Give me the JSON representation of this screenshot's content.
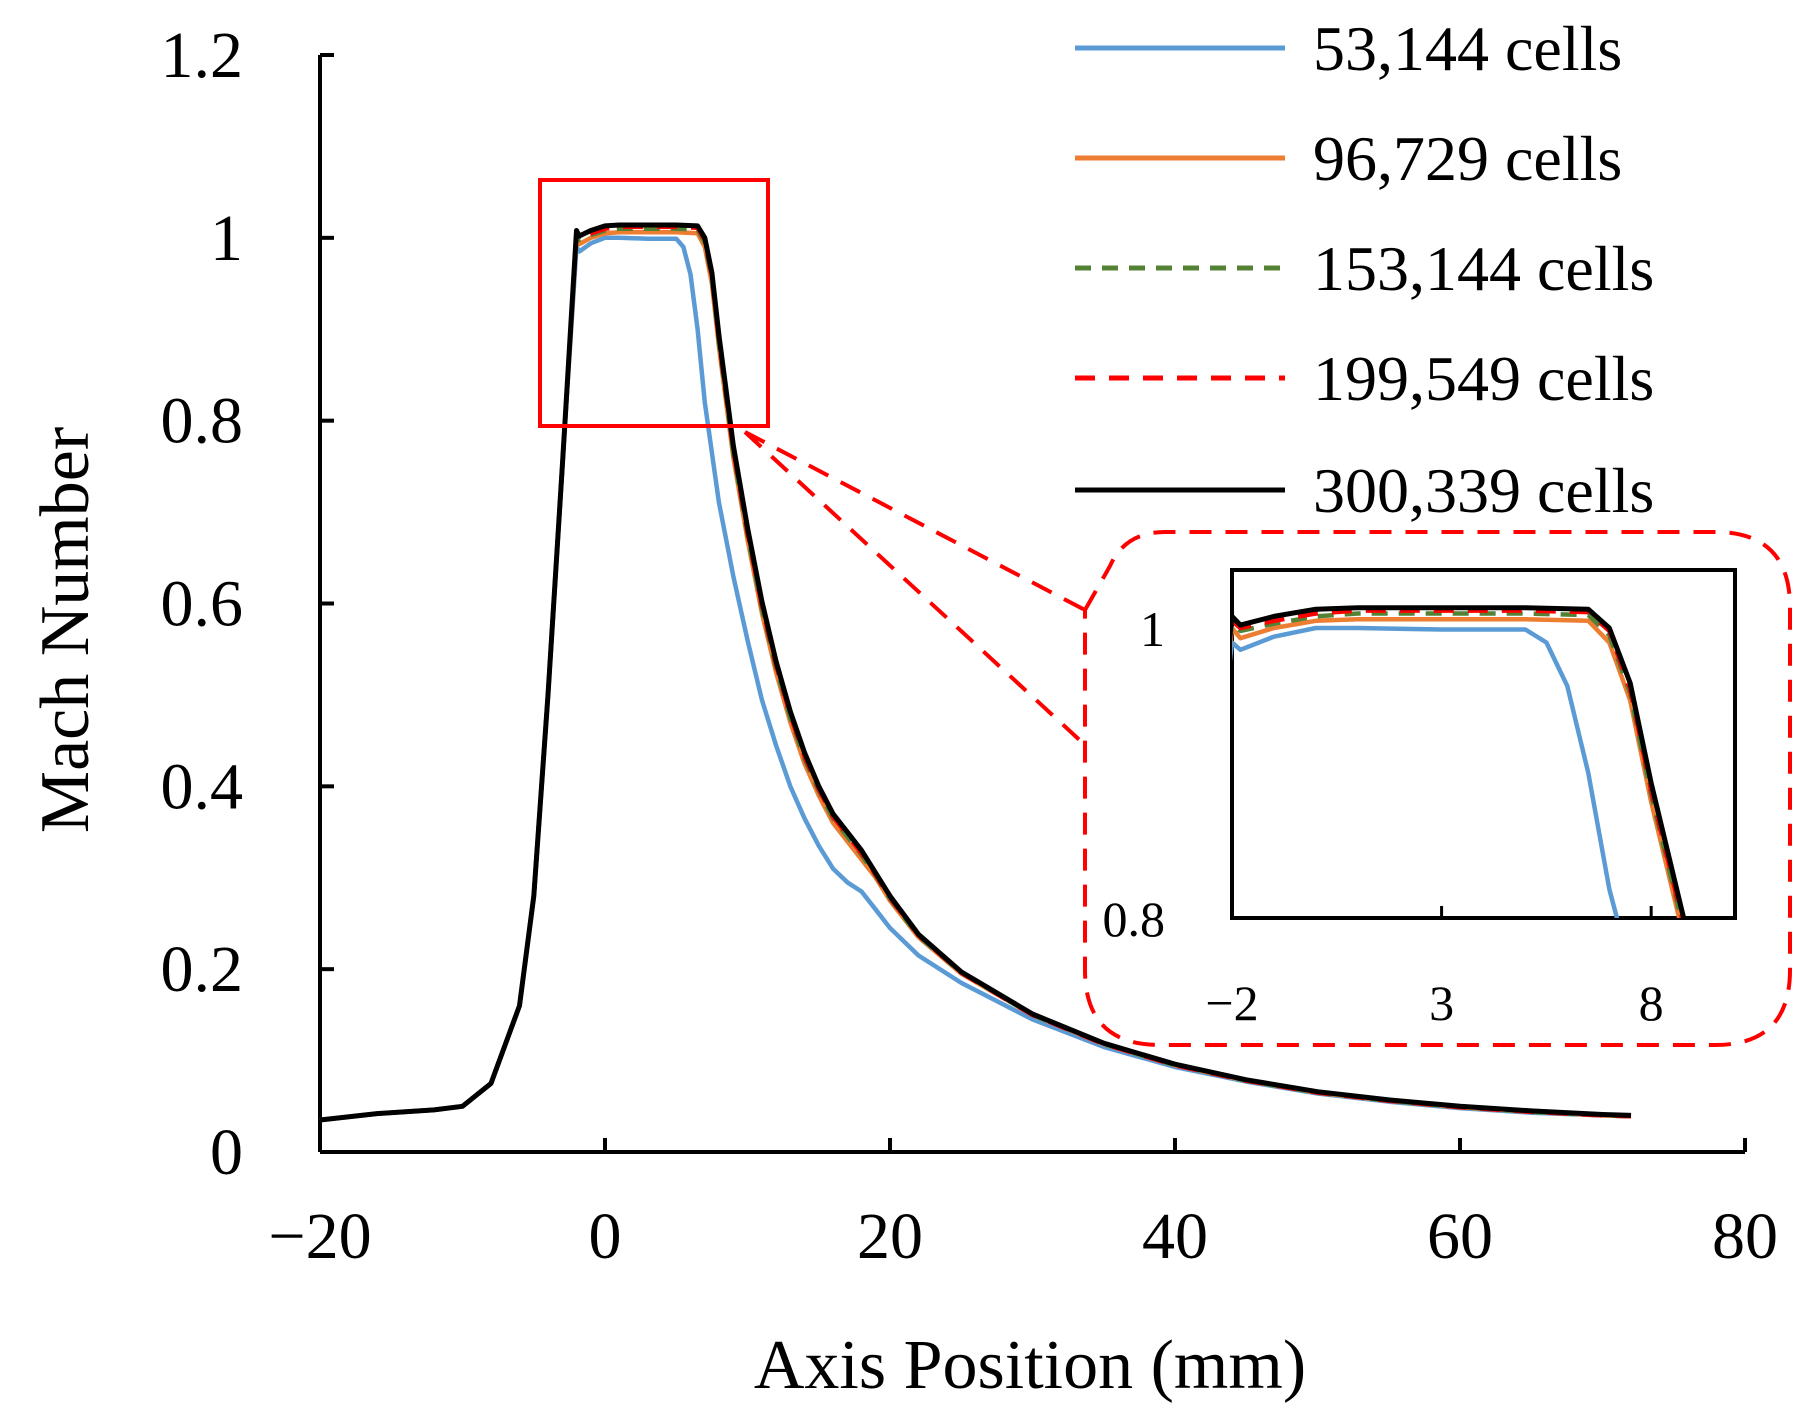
{
  "chart_data": {
    "type": "line",
    "title": "",
    "xlabel": "Axis Position (mm)",
    "ylabel": "Mach Number",
    "xlim": [
      -20,
      80
    ],
    "ylim": [
      0,
      1.2
    ],
    "x_ticks": [
      "−20",
      "0",
      "20",
      "40",
      "60",
      "80"
    ],
    "y_ticks": [
      "0",
      "0.2",
      "0.4",
      "0.6",
      "0.8",
      "1",
      "1.2"
    ],
    "grid": false,
    "legend_position": "top-right",
    "series": [
      {
        "name": "53,144 cells",
        "color": "#5b9bd5",
        "style": "solid",
        "points": [
          [
            -20,
            0.035
          ],
          [
            -16,
            0.042
          ],
          [
            -12,
            0.046
          ],
          [
            -10,
            0.05
          ],
          [
            -8,
            0.075
          ],
          [
            -6,
            0.16
          ],
          [
            -5,
            0.28
          ],
          [
            -4,
            0.5
          ],
          [
            -3,
            0.75
          ],
          [
            -2,
            0.99
          ],
          [
            -1.8,
            0.985
          ],
          [
            -1,
            0.994
          ],
          [
            0,
            1.0
          ],
          [
            1,
            1.0
          ],
          [
            3,
            0.999
          ],
          [
            5,
            0.999
          ],
          [
            5.5,
            0.99
          ],
          [
            6,
            0.96
          ],
          [
            6.5,
            0.9
          ],
          [
            7,
            0.82
          ],
          [
            8,
            0.71
          ],
          [
            9,
            0.63
          ],
          [
            10,
            0.56
          ],
          [
            11,
            0.495
          ],
          [
            12,
            0.445
          ],
          [
            13,
            0.4
          ],
          [
            14,
            0.365
          ],
          [
            15,
            0.335
          ],
          [
            16,
            0.31
          ],
          [
            17,
            0.295
          ],
          [
            18,
            0.285
          ],
          [
            19,
            0.265
          ],
          [
            20,
            0.245
          ],
          [
            22,
            0.215
          ],
          [
            25,
            0.185
          ],
          [
            30,
            0.145
          ],
          [
            35,
            0.115
          ],
          [
            40,
            0.093
          ],
          [
            45,
            0.077
          ],
          [
            50,
            0.064
          ],
          [
            55,
            0.055
          ],
          [
            60,
            0.048
          ],
          [
            65,
            0.043
          ],
          [
            70,
            0.04
          ],
          [
            72,
            0.039
          ]
        ]
      },
      {
        "name": "96,729 cells",
        "color": "#ed7d31",
        "style": "solid",
        "points": [
          [
            -20,
            0.035
          ],
          [
            -16,
            0.042
          ],
          [
            -12,
            0.046
          ],
          [
            -10,
            0.05
          ],
          [
            -8,
            0.075
          ],
          [
            -6,
            0.16
          ],
          [
            -5,
            0.28
          ],
          [
            -4,
            0.5
          ],
          [
            -3,
            0.75
          ],
          [
            -2,
            1.0
          ],
          [
            -1.8,
            0.993
          ],
          [
            -1,
            1.0
          ],
          [
            0,
            1.005
          ],
          [
            1,
            1.006
          ],
          [
            3,
            1.006
          ],
          [
            5,
            1.006
          ],
          [
            6.5,
            1.005
          ],
          [
            7,
            0.99
          ],
          [
            7.5,
            0.95
          ],
          [
            8,
            0.88
          ],
          [
            9,
            0.76
          ],
          [
            10,
            0.67
          ],
          [
            11,
            0.59
          ],
          [
            12,
            0.525
          ],
          [
            13,
            0.47
          ],
          [
            14,
            0.425
          ],
          [
            15,
            0.39
          ],
          [
            16,
            0.36
          ],
          [
            17,
            0.34
          ],
          [
            18,
            0.32
          ],
          [
            19,
            0.3
          ],
          [
            20,
            0.275
          ],
          [
            22,
            0.235
          ],
          [
            25,
            0.195
          ],
          [
            30,
            0.15
          ],
          [
            35,
            0.118
          ],
          [
            40,
            0.095
          ],
          [
            45,
            0.078
          ],
          [
            50,
            0.065
          ],
          [
            55,
            0.056
          ],
          [
            60,
            0.049
          ],
          [
            65,
            0.044
          ],
          [
            70,
            0.04
          ],
          [
            72,
            0.039
          ]
        ]
      },
      {
        "name": "153,144 cells",
        "color": "#548235",
        "style": "dashed",
        "points": [
          [
            -20,
            0.035
          ],
          [
            -16,
            0.042
          ],
          [
            -12,
            0.046
          ],
          [
            -10,
            0.05
          ],
          [
            -8,
            0.075
          ],
          [
            -6,
            0.16
          ],
          [
            -5,
            0.28
          ],
          [
            -4,
            0.5
          ],
          [
            -3,
            0.75
          ],
          [
            -2,
            1.003
          ],
          [
            -1.8,
            0.998
          ],
          [
            -1,
            1.003
          ],
          [
            0,
            1.008
          ],
          [
            1,
            1.01
          ],
          [
            3,
            1.01
          ],
          [
            5,
            1.01
          ],
          [
            6.5,
            1.009
          ],
          [
            7,
            0.995
          ],
          [
            7.5,
            0.955
          ],
          [
            8,
            0.885
          ],
          [
            9,
            0.765
          ],
          [
            10,
            0.675
          ],
          [
            11,
            0.595
          ],
          [
            12,
            0.53
          ],
          [
            13,
            0.475
          ],
          [
            14,
            0.43
          ],
          [
            15,
            0.395
          ],
          [
            16,
            0.365
          ],
          [
            17,
            0.345
          ],
          [
            18,
            0.325
          ],
          [
            19,
            0.302
          ],
          [
            20,
            0.277
          ],
          [
            22,
            0.236
          ],
          [
            25,
            0.196
          ],
          [
            30,
            0.15
          ],
          [
            35,
            0.118
          ],
          [
            40,
            0.095
          ],
          [
            45,
            0.078
          ],
          [
            50,
            0.065
          ],
          [
            55,
            0.056
          ],
          [
            60,
            0.049
          ],
          [
            65,
            0.044
          ],
          [
            70,
            0.04
          ],
          [
            72,
            0.039
          ]
        ]
      },
      {
        "name": "199,549 cells",
        "color": "#ff0000",
        "style": "dashed",
        "points": [
          [
            -20,
            0.035
          ],
          [
            -16,
            0.042
          ],
          [
            -12,
            0.046
          ],
          [
            -10,
            0.05
          ],
          [
            -8,
            0.075
          ],
          [
            -6,
            0.16
          ],
          [
            -5,
            0.28
          ],
          [
            -4,
            0.5
          ],
          [
            -3,
            0.75
          ],
          [
            -2,
            1.005
          ],
          [
            -1.8,
            1.0
          ],
          [
            -1,
            1.005
          ],
          [
            0,
            1.01
          ],
          [
            1,
            1.012
          ],
          [
            3,
            1.012
          ],
          [
            5,
            1.012
          ],
          [
            6.5,
            1.011
          ],
          [
            7,
            0.998
          ],
          [
            7.5,
            0.958
          ],
          [
            8,
            0.888
          ],
          [
            9,
            0.768
          ],
          [
            10,
            0.678
          ],
          [
            11,
            0.598
          ],
          [
            12,
            0.533
          ],
          [
            13,
            0.478
          ],
          [
            14,
            0.433
          ],
          [
            15,
            0.397
          ],
          [
            16,
            0.367
          ],
          [
            17,
            0.347
          ],
          [
            18,
            0.327
          ],
          [
            19,
            0.303
          ],
          [
            20,
            0.278
          ],
          [
            22,
            0.237
          ],
          [
            25,
            0.196
          ],
          [
            30,
            0.15
          ],
          [
            35,
            0.118
          ],
          [
            40,
            0.095
          ],
          [
            45,
            0.078
          ],
          [
            50,
            0.065
          ],
          [
            55,
            0.056
          ],
          [
            60,
            0.049
          ],
          [
            65,
            0.044
          ],
          [
            70,
            0.04
          ],
          [
            72,
            0.039
          ]
        ]
      },
      {
        "name": "300,339 cells",
        "color": "#000000",
        "style": "solid",
        "points": [
          [
            -20,
            0.035
          ],
          [
            -16,
            0.042
          ],
          [
            -12,
            0.046
          ],
          [
            -10,
            0.05
          ],
          [
            -8,
            0.075
          ],
          [
            -6,
            0.16
          ],
          [
            -5,
            0.28
          ],
          [
            -4,
            0.5
          ],
          [
            -3,
            0.75
          ],
          [
            -2,
            1.008
          ],
          [
            -1.8,
            1.002
          ],
          [
            -1,
            1.008
          ],
          [
            0,
            1.013
          ],
          [
            1,
            1.014
          ],
          [
            3,
            1.014
          ],
          [
            5,
            1.014
          ],
          [
            6.5,
            1.013
          ],
          [
            7,
            1.0
          ],
          [
            7.5,
            0.962
          ],
          [
            8,
            0.893
          ],
          [
            9,
            0.773
          ],
          [
            10,
            0.683
          ],
          [
            11,
            0.603
          ],
          [
            12,
            0.537
          ],
          [
            13,
            0.482
          ],
          [
            14,
            0.437
          ],
          [
            15,
            0.4
          ],
          [
            16,
            0.37
          ],
          [
            17,
            0.35
          ],
          [
            18,
            0.33
          ],
          [
            19,
            0.305
          ],
          [
            20,
            0.28
          ],
          [
            22,
            0.238
          ],
          [
            25,
            0.197
          ],
          [
            30,
            0.151
          ],
          [
            35,
            0.119
          ],
          [
            40,
            0.096
          ],
          [
            45,
            0.079
          ],
          [
            50,
            0.066
          ],
          [
            55,
            0.057
          ],
          [
            60,
            0.05
          ],
          [
            65,
            0.045
          ],
          [
            70,
            0.041
          ],
          [
            72,
            0.04
          ]
        ]
      }
    ],
    "inset": {
      "xlim": [
        -2,
        10
      ],
      "ylim": [
        0.8,
        1.04
      ],
      "x_ticks": [
        "−2",
        "3",
        "8"
      ],
      "y_ticks": [
        "0.8",
        "1"
      ]
    }
  }
}
